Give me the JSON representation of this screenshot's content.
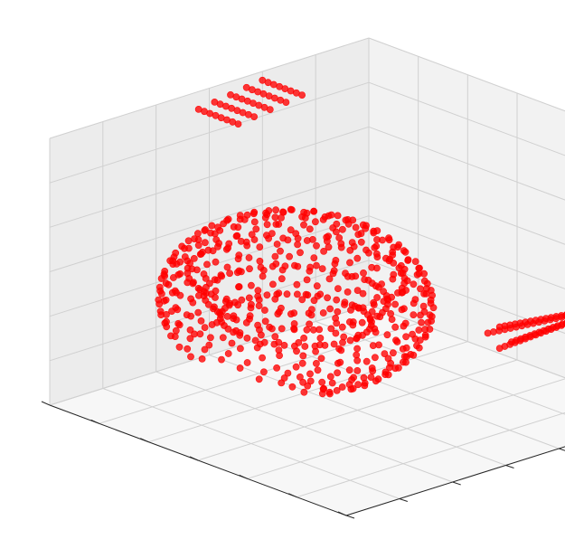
{
  "chart_data": {
    "type": "scatter",
    "projection": "3d",
    "title": "",
    "xlabel": "",
    "ylabel": "",
    "zlabel": "",
    "grid": true,
    "legend": "none",
    "xlim": [
      0,
      30
    ],
    "ylim": [
      0,
      30
    ],
    "zlim": [
      0,
      30
    ],
    "x_ticks_labeled": false,
    "y_ticks_labeled": false,
    "z_ticks": [
      "0",
      "5",
      "10",
      "15",
      "20",
      "25",
      "30"
    ],
    "marker_color": "#ff0000",
    "marker": "circle",
    "series": [
      {
        "shape": "shell",
        "cx": 12,
        "cy": 12,
        "cz": 12,
        "rx": 10,
        "ry": 9,
        "rz": 9,
        "open_side": "lower-front"
      },
      {
        "shape": "patch",
        "x": [
          0,
          4
        ],
        "y": [
          14,
          20
        ],
        "z": [
          28,
          29
        ]
      },
      {
        "shape": "rod",
        "from": [
          24,
          20,
          10
        ],
        "to": [
          30,
          27,
          14
        ],
        "thickness": [
          1.2,
          0.5,
          1.6
        ]
      }
    ]
  },
  "colors": {
    "pane_left": "#ececec",
    "pane_back": "#f2f2f2",
    "pane_floor": "#f7f7f7",
    "grid": "#d0d0d0",
    "axis": "#262626"
  }
}
